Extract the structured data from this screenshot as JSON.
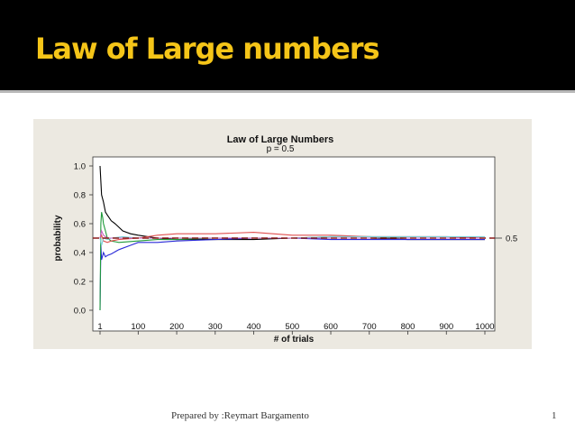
{
  "slide": {
    "title": "Law of Large numbers",
    "footer": "Prepared by :Reymart Bargamento",
    "page_number": "1",
    "title_color": "#f5c518",
    "header_background": "#000000"
  },
  "chart_data": {
    "type": "line",
    "title": "Law of Large Numbers",
    "subtitle": "p = 0.5",
    "xlabel": "# of trials",
    "ylabel": "probability",
    "xlim": [
      1,
      1000
    ],
    "ylim": [
      0,
      1
    ],
    "x_ticks": [
      "1",
      "100",
      "200",
      "300",
      "400",
      "500",
      "600",
      "700",
      "800",
      "900",
      "1000"
    ],
    "y_ticks": [
      "0.0",
      "0.2",
      "0.4",
      "0.6",
      "0.8",
      "1.0"
    ],
    "reference_line": {
      "value": 0.5,
      "label": "0.5",
      "color": "#8b1a1a",
      "style": "dashed"
    },
    "grid": false,
    "series": [
      {
        "color": "#000000",
        "x": [
          1,
          5,
          10,
          15,
          20,
          30,
          40,
          60,
          80,
          100,
          150,
          200,
          300,
          400,
          500,
          600,
          700,
          800,
          900,
          1000
        ],
        "y": [
          1.0,
          0.8,
          0.75,
          0.68,
          0.66,
          0.62,
          0.6,
          0.55,
          0.53,
          0.52,
          0.5,
          0.49,
          0.49,
          0.49,
          0.5,
          0.5,
          0.5,
          0.49,
          0.49,
          0.49
        ]
      },
      {
        "color": "#2a2ad8",
        "x": [
          1,
          3,
          5,
          8,
          10,
          15,
          20,
          30,
          50,
          80,
          100,
          150,
          200,
          300,
          400,
          500,
          600,
          700,
          800,
          900,
          1000
        ],
        "y": [
          0.0,
          0.45,
          0.35,
          0.38,
          0.4,
          0.37,
          0.38,
          0.39,
          0.42,
          0.45,
          0.47,
          0.47,
          0.48,
          0.49,
          0.5,
          0.5,
          0.49,
          0.49,
          0.49,
          0.49,
          0.49
        ]
      },
      {
        "color": "#1f9a3a",
        "x": [
          1,
          3,
          5,
          8,
          10,
          15,
          20,
          30,
          50,
          100,
          150,
          200,
          300,
          400,
          500,
          600,
          700,
          800,
          900,
          1000
        ],
        "y": [
          0.0,
          0.6,
          0.68,
          0.64,
          0.6,
          0.55,
          0.5,
          0.48,
          0.47,
          0.48,
          0.49,
          0.49,
          0.5,
          0.5,
          0.5,
          0.51,
          0.51,
          0.5,
          0.5,
          0.5
        ]
      },
      {
        "color": "#e05050",
        "x": [
          1,
          5,
          10,
          20,
          30,
          50,
          100,
          150,
          200,
          300,
          400,
          450,
          500,
          600,
          700,
          800,
          900,
          1000
        ],
        "y": [
          0.5,
          0.52,
          0.48,
          0.47,
          0.48,
          0.49,
          0.5,
          0.52,
          0.53,
          0.53,
          0.54,
          0.53,
          0.52,
          0.52,
          0.51,
          0.51,
          0.51,
          0.5
        ]
      },
      {
        "color": "#7fd0d8",
        "x": [
          1,
          5,
          10,
          20,
          30,
          60,
          100,
          200,
          300,
          400,
          500,
          600,
          700,
          800,
          900,
          1000
        ],
        "y": [
          0.5,
          0.45,
          0.5,
          0.49,
          0.5,
          0.51,
          0.5,
          0.5,
          0.5,
          0.5,
          0.5,
          0.51,
          0.51,
          0.51,
          0.51,
          0.51
        ]
      },
      {
        "color": "#c060c0",
        "x": [
          1,
          5,
          10,
          20,
          40,
          80,
          150,
          250,
          400,
          600,
          800,
          1000
        ],
        "y": [
          0.5,
          0.55,
          0.52,
          0.5,
          0.5,
          0.5,
          0.5,
          0.5,
          0.5,
          0.5,
          0.5,
          0.5
        ]
      }
    ]
  }
}
